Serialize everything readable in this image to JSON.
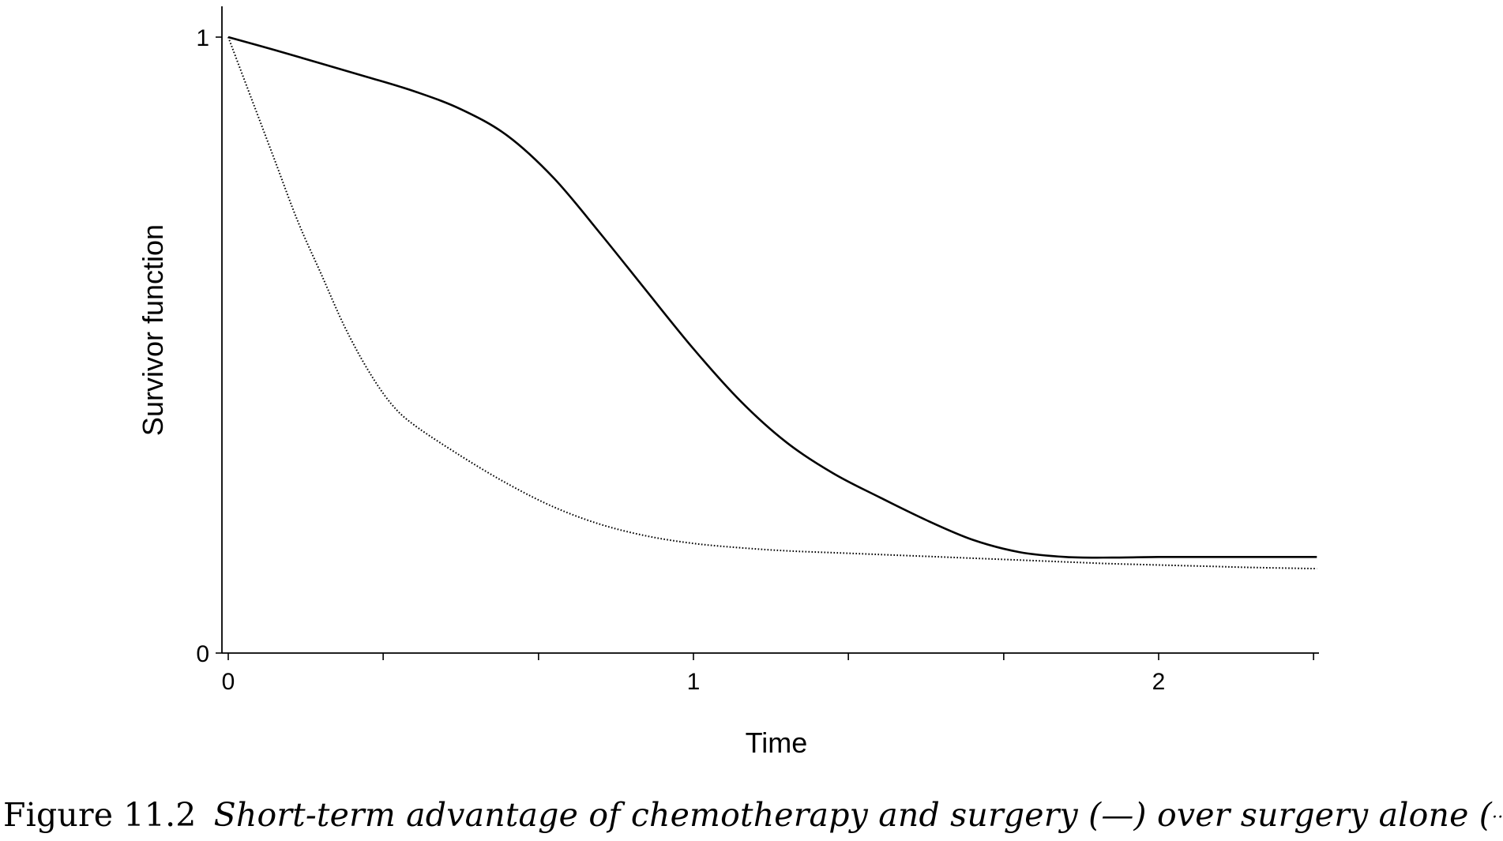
{
  "chart_data": {
    "type": "line",
    "xlabel": "Time",
    "ylabel": "Survivor function",
    "xlim": [
      0,
      2.34
    ],
    "ylim": [
      0,
      1
    ],
    "x_ticks": [
      0,
      1,
      2
    ],
    "x_minor_ticks": [
      0.333,
      0.667,
      1.333,
      1.667,
      2.333
    ],
    "y_ticks": [
      0,
      1
    ],
    "grid": false,
    "series": [
      {
        "style": "solid",
        "color": "#000000",
        "points": [
          [
            0,
            1.0
          ],
          [
            0.1,
            0.979
          ],
          [
            0.2,
            0.957
          ],
          [
            0.3,
            0.935
          ],
          [
            0.4,
            0.912
          ],
          [
            0.5,
            0.883
          ],
          [
            0.6,
            0.84
          ],
          [
            0.7,
            0.771
          ],
          [
            0.8,
            0.681
          ],
          [
            0.9,
            0.587
          ],
          [
            1.0,
            0.494
          ],
          [
            1.1,
            0.41
          ],
          [
            1.2,
            0.342
          ],
          [
            1.3,
            0.292
          ],
          [
            1.4,
            0.253
          ],
          [
            1.5,
            0.216
          ],
          [
            1.6,
            0.184
          ],
          [
            1.7,
            0.164
          ],
          [
            1.8,
            0.156
          ],
          [
            1.9,
            0.155
          ],
          [
            2.0,
            0.156
          ],
          [
            2.1,
            0.156
          ],
          [
            2.2,
            0.156
          ],
          [
            2.34,
            0.156
          ]
        ]
      },
      {
        "style": "dotted",
        "color": "#000000",
        "points": [
          [
            0,
            1.0
          ],
          [
            0.05,
            0.9
          ],
          [
            0.1,
            0.8
          ],
          [
            0.15,
            0.7
          ],
          [
            0.2,
            0.615
          ],
          [
            0.25,
            0.53
          ],
          [
            0.3,
            0.46
          ],
          [
            0.35,
            0.405
          ],
          [
            0.4,
            0.37
          ],
          [
            0.5,
            0.32
          ],
          [
            0.6,
            0.275
          ],
          [
            0.7,
            0.237
          ],
          [
            0.8,
            0.209
          ],
          [
            0.9,
            0.19
          ],
          [
            1.0,
            0.178
          ],
          [
            1.1,
            0.171
          ],
          [
            1.2,
            0.166
          ],
          [
            1.3,
            0.163
          ],
          [
            1.4,
            0.16
          ],
          [
            1.5,
            0.157
          ],
          [
            1.6,
            0.154
          ],
          [
            1.7,
            0.151
          ],
          [
            1.8,
            0.148
          ],
          [
            1.9,
            0.145
          ],
          [
            2.0,
            0.143
          ],
          [
            2.1,
            0.141
          ],
          [
            2.2,
            0.139
          ],
          [
            2.34,
            0.137
          ]
        ]
      }
    ]
  },
  "caption": {
    "number": "Figure 11.2",
    "text_before": "Short-term advantage of chemotherapy and surgery (",
    "solid_mark": "—",
    "text_middle": ") over surgery alone (",
    "dotted_mark": "······",
    "text_after": ")."
  }
}
